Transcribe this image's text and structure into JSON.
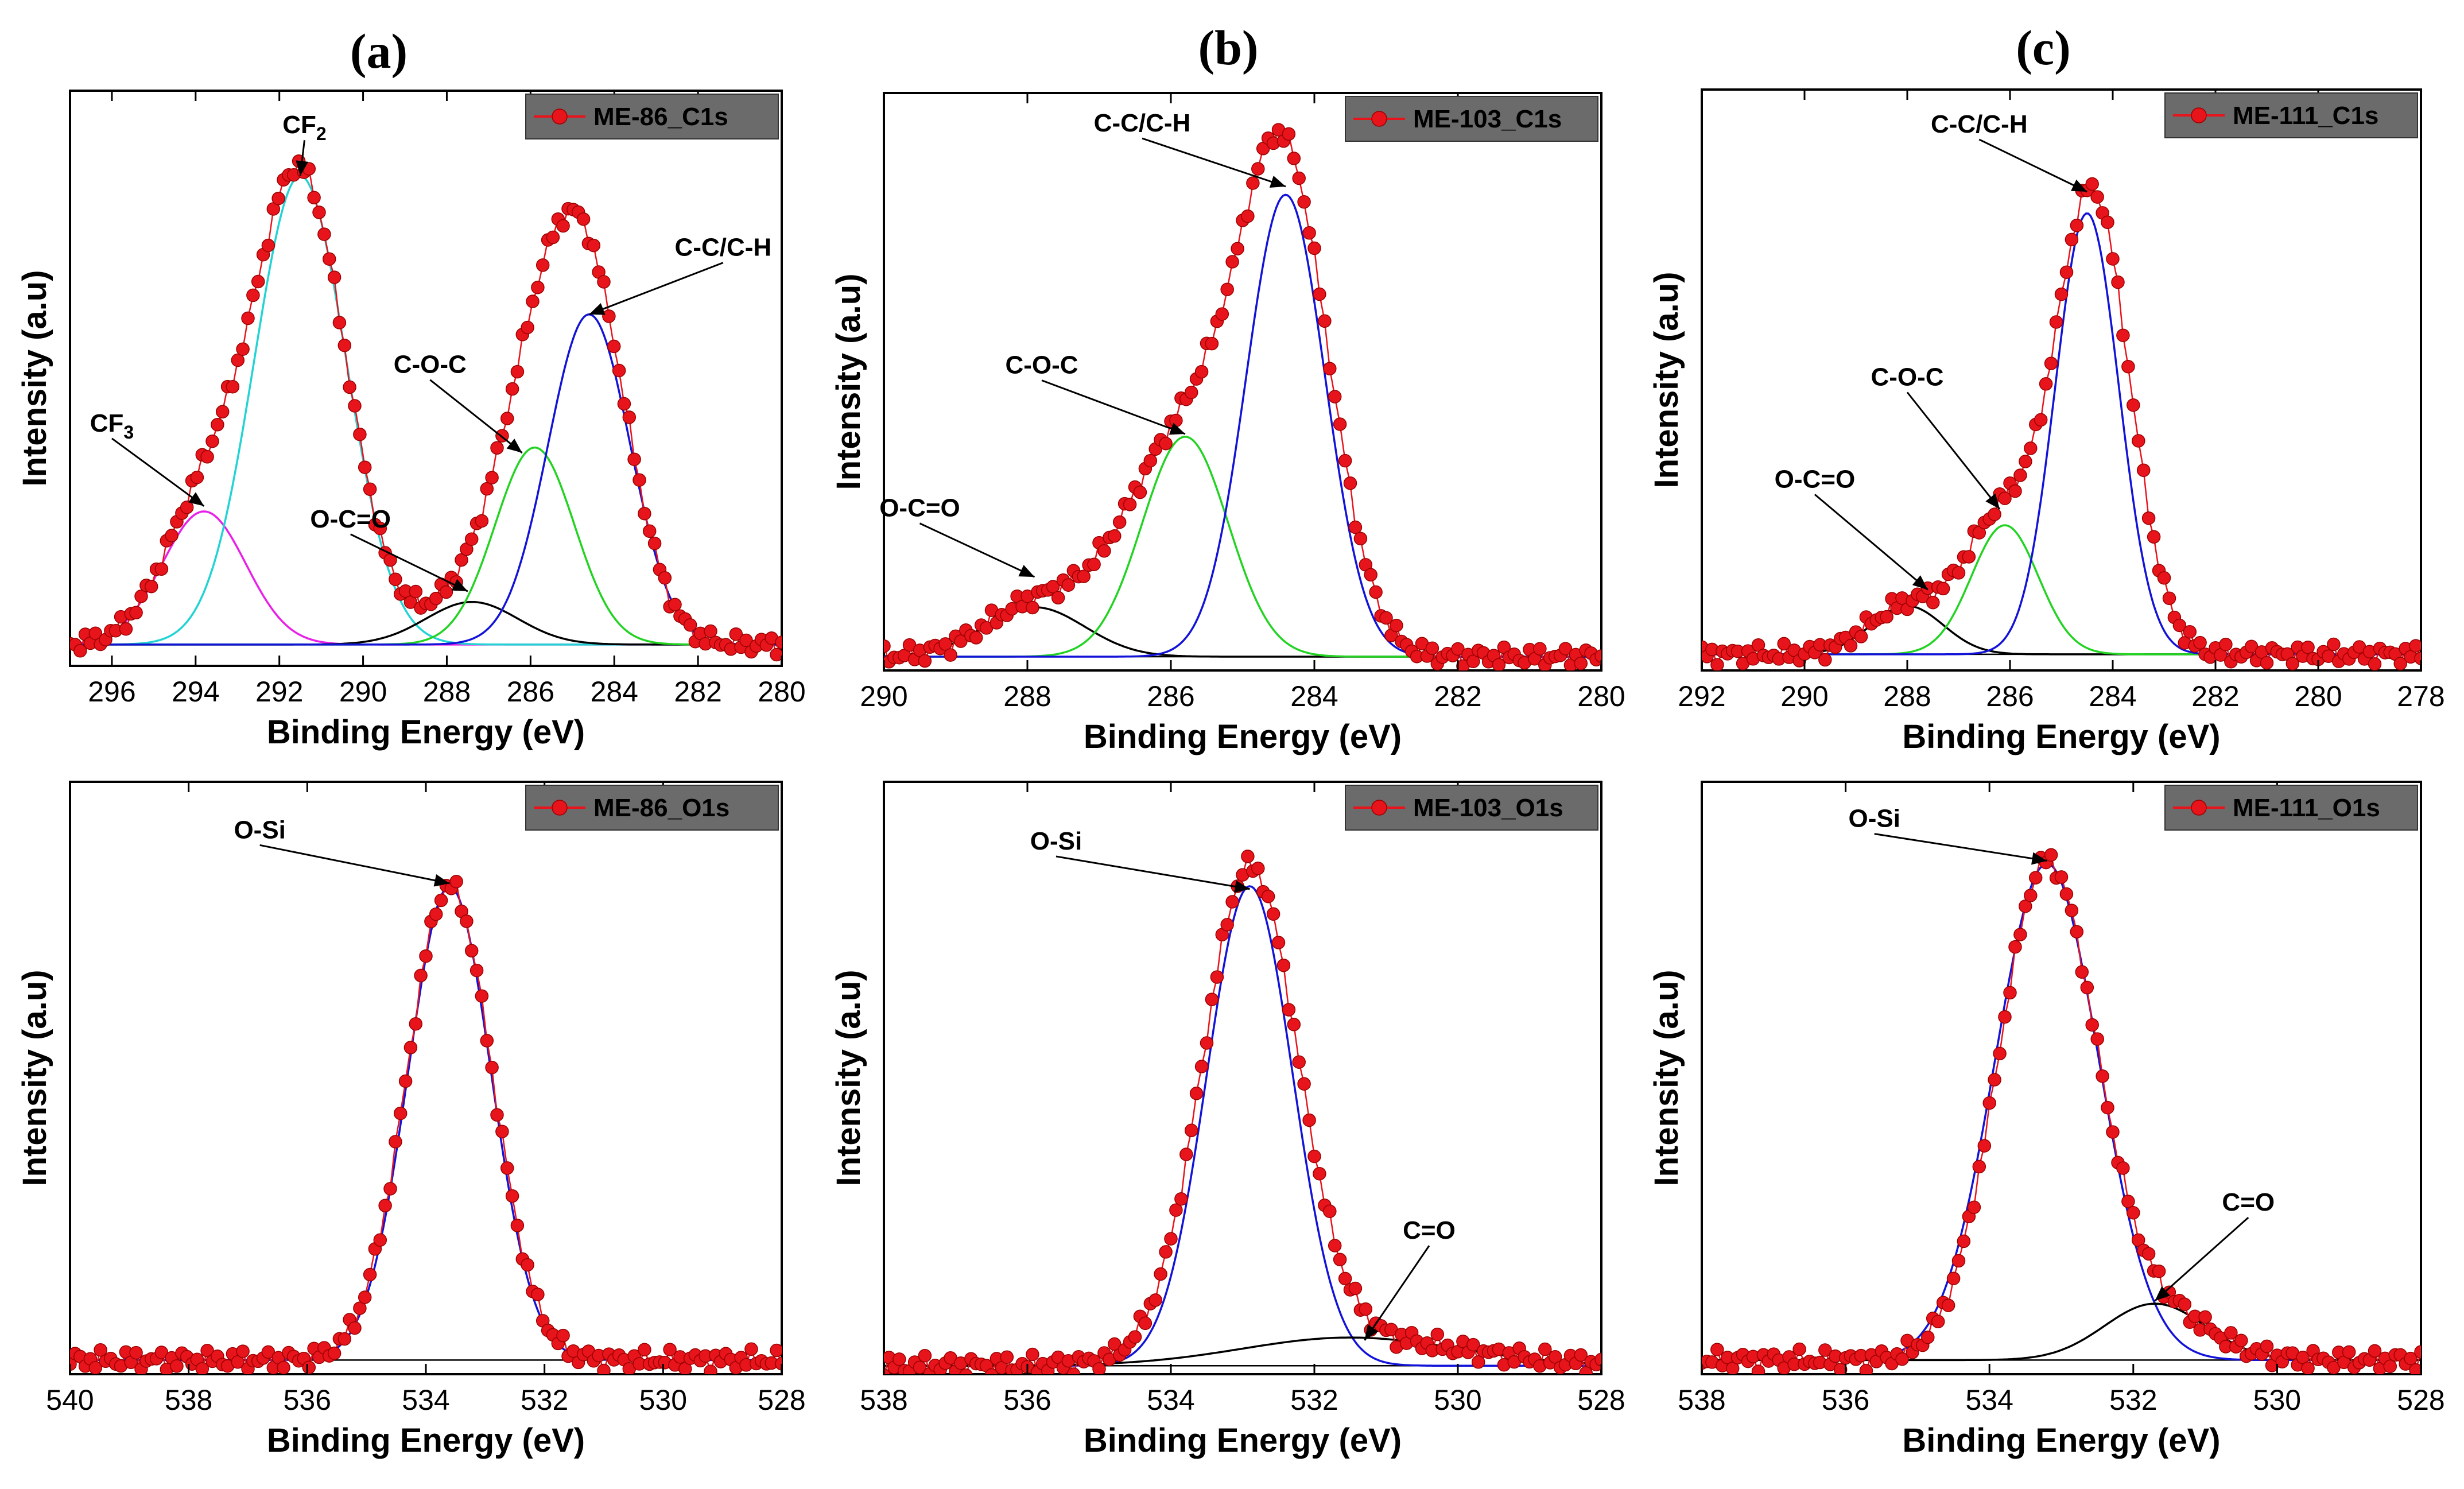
{
  "figure": {
    "panel_letters": [
      "(a)",
      "(b)",
      "(c)"
    ]
  },
  "chart_data": [
    {
      "id": "a-c1s",
      "type": "line",
      "legend": "ME-86_C1s",
      "xlabel": "Binding Energy (eV)",
      "ylabel": "Intensity (a.u)",
      "xlim": [
        297,
        280
      ],
      "ylim": [
        0,
        1.08
      ],
      "xticks": [
        296,
        294,
        292,
        290,
        288,
        286,
        284,
        282,
        280
      ],
      "x_reversed": true,
      "baseline": 0.04,
      "experimental": {
        "name": "ME-86_C1s",
        "color": "#e8141c",
        "peaks": [
          [
            293.8,
            0.25,
            1.0
          ],
          [
            291.5,
            0.88,
            1.1
          ],
          [
            287.4,
            0.08,
            1.1
          ],
          [
            285.9,
            0.37,
            0.95
          ],
          [
            284.6,
            0.62,
            0.98
          ]
        ]
      },
      "components": [
        {
          "label": "CF3",
          "center": 293.8,
          "height": 0.25,
          "sigma": 1.0,
          "color": "#e81fe8"
        },
        {
          "label": "CF2",
          "center": 291.5,
          "height": 0.88,
          "sigma": 1.1,
          "color": "#22d3d3"
        },
        {
          "label": "O-C=O",
          "center": 287.4,
          "height": 0.08,
          "sigma": 1.1,
          "color": "#000000"
        },
        {
          "label": "C-O-C",
          "center": 285.9,
          "height": 0.37,
          "sigma": 0.95,
          "color": "#22d322"
        },
        {
          "label": "C-C/C-H",
          "center": 284.6,
          "height": 0.62,
          "sigma": 0.98,
          "color": "#1212d8"
        }
      ],
      "annotations": [
        {
          "text": "CF",
          "sub": "2",
          "text_x": 291.4,
          "text_y": 1.0,
          "point_x": 291.5,
          "point_y": 0.92
        },
        {
          "text": "CF",
          "sub": "3",
          "text_x": 296.0,
          "text_y": 0.44,
          "point_x": 293.8,
          "point_y": 0.3
        },
        {
          "text": "C-O-C",
          "text_x": 288.4,
          "text_y": 0.55,
          "point_x": 286.2,
          "point_y": 0.4
        },
        {
          "text": "O-C=O",
          "text_x": 290.3,
          "text_y": 0.26,
          "point_x": 287.5,
          "point_y": 0.14
        },
        {
          "text": "C-C/C-H",
          "text_x": 281.4,
          "text_y": 0.77,
          "point_x": 284.6,
          "point_y": 0.66
        }
      ]
    },
    {
      "id": "b-c1s",
      "type": "line",
      "legend": "ME-103_C1s",
      "xlabel": "Binding Energy (eV)",
      "ylabel": "Intensity (a.u)",
      "xlim": [
        290,
        280
      ],
      "ylim": [
        0,
        1.05
      ],
      "xticks": [
        290,
        288,
        286,
        284,
        282,
        280
      ],
      "x_reversed": true,
      "baseline": 0.025,
      "experimental": {
        "name": "ME-103_C1s",
        "color": "#e8141c",
        "peaks": [
          [
            287.9,
            0.09,
            0.7
          ],
          [
            285.8,
            0.4,
            0.85
          ],
          [
            284.4,
            0.84,
            0.62
          ]
        ]
      },
      "components": [
        {
          "label": "O-C=O",
          "center": 287.9,
          "height": 0.09,
          "sigma": 0.7,
          "color": "#000000"
        },
        {
          "label": "C-O-C",
          "center": 285.8,
          "height": 0.4,
          "sigma": 0.6,
          "color": "#22d322"
        },
        {
          "label": "C-C/C-H",
          "center": 284.4,
          "height": 0.84,
          "sigma": 0.55,
          "color": "#1212d8"
        }
      ],
      "annotations": [
        {
          "text": "C-C/C-H",
          "text_x": 286.4,
          "text_y": 0.98,
          "point_x": 284.4,
          "point_y": 0.88
        },
        {
          "text": "C-O-C",
          "text_x": 287.8,
          "text_y": 0.54,
          "point_x": 285.8,
          "point_y": 0.43
        },
        {
          "text": "O-C=O",
          "text_x": 289.5,
          "text_y": 0.28,
          "point_x": 287.9,
          "point_y": 0.17
        }
      ]
    },
    {
      "id": "c-c1s",
      "type": "line",
      "legend": "ME-111_C1s",
      "xlabel": "Binding Energy (eV)",
      "ylabel": "Intensity (a.u)",
      "xlim": [
        292,
        278
      ],
      "ylim": [
        0,
        1.08
      ],
      "xticks": [
        292,
        290,
        288,
        286,
        284,
        282,
        280,
        278
      ],
      "x_reversed": true,
      "baseline": 0.03,
      "experimental": {
        "name": "ME-111_C1s",
        "color": "#e8141c",
        "peaks": [
          [
            288.0,
            0.09,
            0.75
          ],
          [
            286.2,
            0.24,
            0.7
          ],
          [
            284.4,
            0.86,
            0.72
          ]
        ]
      },
      "components": [
        {
          "label": "O-C=O",
          "center": 288.0,
          "height": 0.09,
          "sigma": 0.7,
          "color": "#000000"
        },
        {
          "label": "C-O-C",
          "center": 286.1,
          "height": 0.24,
          "sigma": 0.65,
          "color": "#22d322"
        },
        {
          "label": "C-C/C-H",
          "center": 284.5,
          "height": 0.82,
          "sigma": 0.62,
          "color": "#1212d8"
        }
      ],
      "annotations": [
        {
          "text": "C-C/C-H",
          "text_x": 286.6,
          "text_y": 1.0,
          "point_x": 284.5,
          "point_y": 0.89
        },
        {
          "text": "C-O-C",
          "text_x": 288.0,
          "text_y": 0.53,
          "point_x": 286.2,
          "point_y": 0.3
        },
        {
          "text": "O-C=O",
          "text_x": 289.8,
          "text_y": 0.34,
          "point_x": 287.6,
          "point_y": 0.15
        }
      ]
    },
    {
      "id": "a-o1s",
      "type": "line",
      "legend": "ME-86_O1s",
      "xlabel": "Binding Energy (eV)",
      "ylabel": "Intensity (a.u)",
      "xlim": [
        540,
        528
      ],
      "ylim": [
        0,
        1.05
      ],
      "xticks": [
        540,
        538,
        536,
        534,
        532,
        530,
        528
      ],
      "x_reversed": true,
      "baseline": 0.025,
      "experimental": {
        "name": "ME-86_O1s",
        "color": "#e8141c",
        "peaks": [
          [
            533.6,
            0.84,
            0.72
          ]
        ]
      },
      "components": [
        {
          "label": "O-Si",
          "center": 533.6,
          "height": 0.84,
          "sigma": 0.7,
          "color": "#1212d8"
        }
      ],
      "annotations": [
        {
          "text": "O-Si",
          "text_x": 536.8,
          "text_y": 0.95,
          "point_x": 533.6,
          "point_y": 0.87
        }
      ]
    },
    {
      "id": "b-o1s",
      "type": "line",
      "legend": "ME-103_O1s",
      "xlabel": "Binding Energy (eV)",
      "ylabel": "Intensity (a.u)",
      "xlim": [
        538,
        528
      ],
      "ylim": [
        0,
        1.05
      ],
      "xticks": [
        538,
        536,
        534,
        532,
        530,
        528
      ],
      "x_reversed": true,
      "baseline": 0.015,
      "experimental": {
        "name": "ME-103_O1s",
        "color": "#e8141c",
        "peaks": [
          [
            532.9,
            0.85,
            0.66
          ],
          [
            531.6,
            0.05,
            1.6
          ]
        ]
      },
      "components": [
        {
          "label": "O-Si",
          "center": 532.9,
          "height": 0.85,
          "sigma": 0.6,
          "color": "#1212d8"
        },
        {
          "label": "C=O",
          "center": 531.5,
          "height": 0.05,
          "sigma": 1.5,
          "color": "#000000"
        }
      ],
      "annotations": [
        {
          "text": "O-Si",
          "text_x": 535.6,
          "text_y": 0.93,
          "point_x": 532.9,
          "point_y": 0.86
        },
        {
          "text": "C=O",
          "text_x": 530.4,
          "text_y": 0.24,
          "point_x": 531.3,
          "point_y": 0.06
        }
      ]
    },
    {
      "id": "c-o1s",
      "type": "line",
      "legend": "ME-111_O1s",
      "xlabel": "Binding Energy (eV)",
      "ylabel": "Intensity (a.u)",
      "xlim": [
        538,
        528
      ],
      "ylim": [
        0,
        1.05
      ],
      "xticks": [
        538,
        536,
        534,
        532,
        530,
        528
      ],
      "x_reversed": true,
      "baseline": 0.025,
      "experimental": {
        "name": "ME-111_O1s",
        "color": "#e8141c",
        "peaks": [
          [
            533.2,
            0.88,
            0.68
          ],
          [
            531.6,
            0.08,
            0.7
          ]
        ]
      },
      "components": [
        {
          "label": "O-Si",
          "center": 533.2,
          "height": 0.88,
          "sigma": 0.72,
          "color": "#1212d8"
        },
        {
          "label": "C=O",
          "center": 531.7,
          "height": 0.1,
          "sigma": 0.7,
          "color": "#000000"
        }
      ],
      "annotations": [
        {
          "text": "O-Si",
          "text_x": 535.6,
          "text_y": 0.97,
          "point_x": 533.2,
          "point_y": 0.91
        },
        {
          "text": "C=O",
          "text_x": 530.4,
          "text_y": 0.29,
          "point_x": 531.7,
          "point_y": 0.13
        }
      ]
    }
  ]
}
